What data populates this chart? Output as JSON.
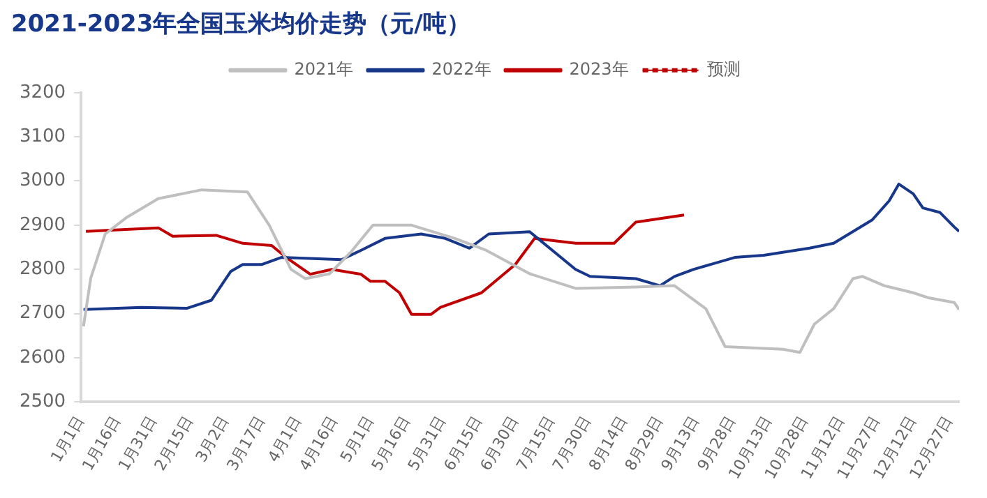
{
  "chart_data": {
    "type": "line",
    "title": "2021-2023年全国玉米均价走势（元/吨）",
    "xlim": [
      "--01-01",
      "--12-31"
    ],
    "xticks": [
      {
        "value": "--01-01",
        "label": "1月1日"
      },
      {
        "value": "--01-16",
        "label": "1月16日"
      },
      {
        "value": "--01-31",
        "label": "1月31日"
      },
      {
        "value": "--02-15",
        "label": "2月15日"
      },
      {
        "value": "--03-02",
        "label": "3月2日"
      },
      {
        "value": "--03-17",
        "label": "3月17日"
      },
      {
        "value": "--04-01",
        "label": "4月1日"
      },
      {
        "value": "--04-16",
        "label": "4月16日"
      },
      {
        "value": "--05-01",
        "label": "5月1日"
      },
      {
        "value": "--05-16",
        "label": "5月16日"
      },
      {
        "value": "--05-31",
        "label": "5月31日"
      },
      {
        "value": "--06-15",
        "label": "6月15日"
      },
      {
        "value": "--06-30",
        "label": "6月30日"
      },
      {
        "value": "--07-15",
        "label": "7月15日"
      },
      {
        "value": "--07-30",
        "label": "7月30日"
      },
      {
        "value": "--08-14",
        "label": "8月14日"
      },
      {
        "value": "--08-29",
        "label": "8月29日"
      },
      {
        "value": "--09-13",
        "label": "9月13日"
      },
      {
        "value": "--09-28",
        "label": "9月28日"
      },
      {
        "value": "--10-13",
        "label": "10月13日"
      },
      {
        "value": "--10-28",
        "label": "10月28日"
      },
      {
        "value": "--11-12",
        "label": "11月12日"
      },
      {
        "value": "--11-27",
        "label": "11月27日"
      },
      {
        "value": "--12-12",
        "label": "12月12日"
      },
      {
        "value": "--12-27",
        "label": "12月27日"
      }
    ],
    "ylim": [
      2500,
      3200
    ],
    "yticks": [
      2500,
      2600,
      2700,
      2800,
      2900,
      3000,
      3100,
      3200
    ],
    "grid": false,
    "legend": "top",
    "marker": "none",
    "series": [
      {
        "name": "2021年",
        "color": "#bfbfbf",
        "x": [
          "--01-02",
          "--01-05",
          "--01-11",
          "--01-20",
          "--02-02",
          "--02-20",
          "--03-11",
          "--03-20",
          "--03-29",
          "--04-04",
          "--04-14",
          "--04-23",
          "--05-02",
          "--05-18",
          "--06-05",
          "--06-18",
          "--07-06",
          "--07-25",
          "--08-19",
          "--09-04",
          "--09-17",
          "--09-25",
          "--10-19",
          "--10-26",
          "--11-01",
          "--11-09",
          "--11-17",
          "--11-21",
          "--11-30",
          "--12-12",
          "--12-18",
          "--12-29",
          "--12-31"
        ],
        "values": [
          2671,
          2780,
          2880,
          2918,
          2960,
          2980,
          2975,
          2900,
          2800,
          2779,
          2790,
          2840,
          2900,
          2900,
          2870,
          2843,
          2790,
          2757,
          2760,
          2763,
          2711,
          2625,
          2619,
          2612,
          2676,
          2711,
          2779,
          2784,
          2763,
          2747,
          2736,
          2725,
          2709
        ]
      },
      {
        "name": "2022年",
        "color": "#17378b",
        "x": [
          "--01-02",
          "--01-26",
          "--02-14",
          "--02-24",
          "--03-04",
          "--03-09",
          "--03-17",
          "--03-25",
          "--04-19",
          "--04-27",
          "--05-07",
          "--05-22",
          "--06-01",
          "--06-11",
          "--06-19",
          "--07-06",
          "--07-25",
          "--07-31",
          "--08-19",
          "--08-29",
          "--09-04",
          "--09-12",
          "--09-29",
          "--10-11",
          "--10-30",
          "--11-09",
          "--11-25",
          "--12-02",
          "--12-06",
          "--12-12",
          "--12-16",
          "--12-23",
          "--12-29",
          "--12-31"
        ],
        "values": [
          2709,
          2714,
          2712,
          2730,
          2795,
          2811,
          2811,
          2827,
          2822,
          2843,
          2870,
          2880,
          2870,
          2848,
          2880,
          2885,
          2800,
          2784,
          2779,
          2763,
          2784,
          2800,
          2827,
          2832,
          2848,
          2859,
          2912,
          2955,
          2993,
          2971,
          2939,
          2929,
          2896,
          2886
        ]
      },
      {
        "name": "2023年",
        "color": "#c00000",
        "x": [
          "--01-03",
          "--02-02",
          "--02-08",
          "--02-26",
          "--03-09",
          "--03-21",
          "--03-27",
          "--04-06",
          "--04-15",
          "--04-27",
          "--05-01",
          "--05-07",
          "--05-13",
          "--05-18",
          "--05-26",
          "--05-30",
          "--06-16",
          "--06-30",
          "--07-08",
          "--07-25",
          "--08-10",
          "--08-19",
          "--09-08"
        ],
        "values": [
          2886,
          2894,
          2875,
          2877,
          2859,
          2854,
          2827,
          2789,
          2800,
          2789,
          2773,
          2773,
          2747,
          2698,
          2698,
          2714,
          2747,
          2811,
          2870,
          2859,
          2859,
          2907,
          2923
        ]
      },
      {
        "name": "预测",
        "color": "#c00000",
        "line_style": "dashed"
      }
    ]
  }
}
